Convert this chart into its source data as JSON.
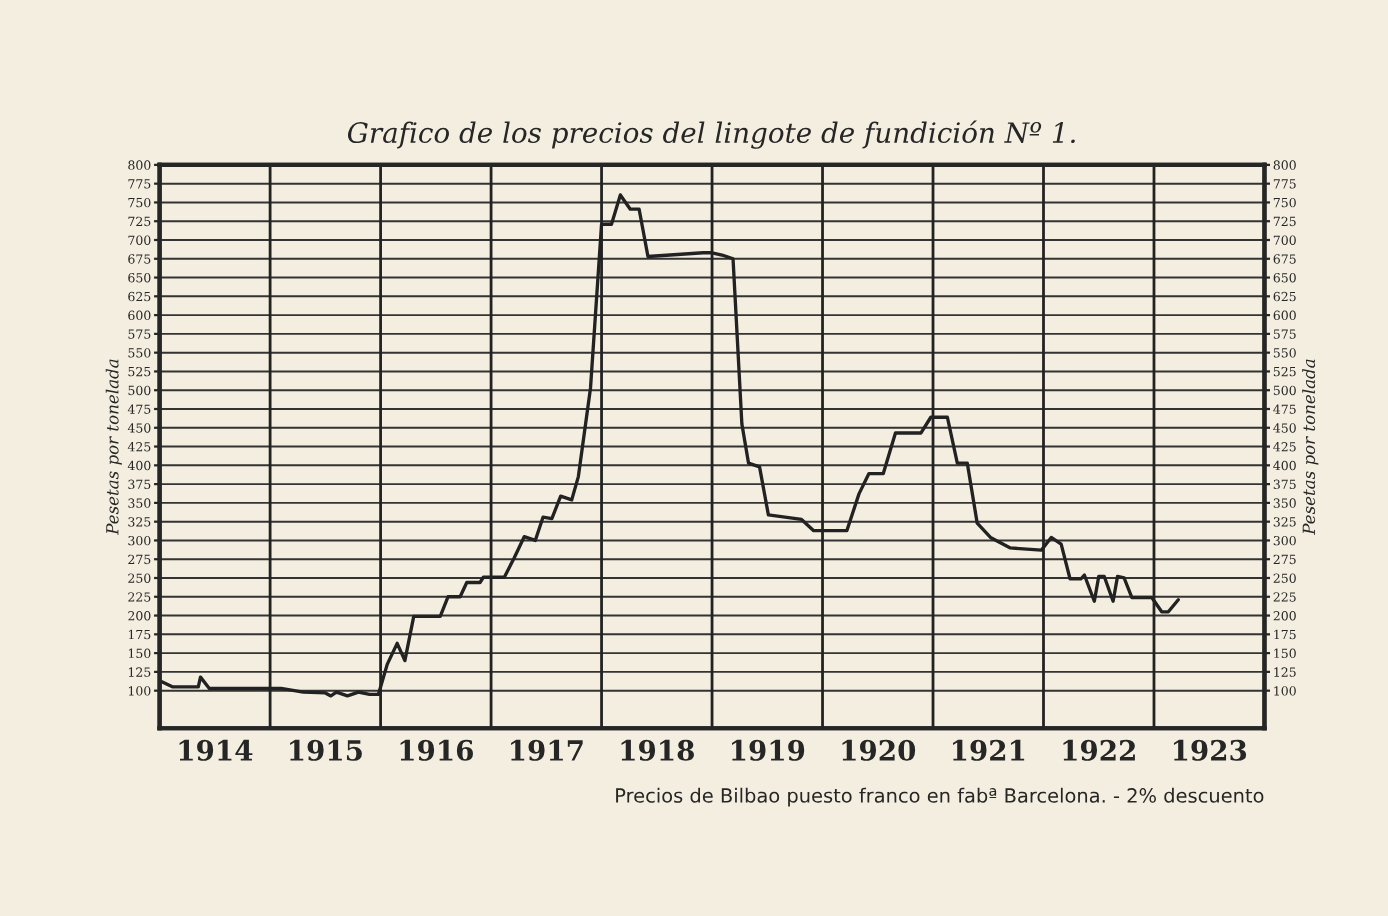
{
  "chart_data": {
    "type": "line",
    "title": "Grafico de los precios del lingote de fundición Nº 1.",
    "ylabel": "Pesetas por tonelada",
    "y2label": "Pesetas por tonelada",
    "annotations": [
      "Precios de Bilbao puesto franco en fabª Barcelona. - 2% descuento"
    ],
    "series": [
      {
        "color": "#222222",
        "x": [
          1914.02,
          1914.12,
          1914.35,
          1914.37,
          1914.45,
          1914.9,
          1915.1,
          1915.3,
          1915.5,
          1915.55,
          1915.6,
          1915.7,
          1915.8,
          1915.9,
          1915.98,
          1916.06,
          1916.15,
          1916.22,
          1916.3,
          1916.54,
          1916.61,
          1916.72,
          1916.78,
          1916.9,
          1916.93,
          1917.12,
          1917.21,
          1917.3,
          1917.4,
          1917.47,
          1917.55,
          1917.63,
          1917.73,
          1917.79,
          1917.9,
          1918.0,
          1918.09,
          1918.17,
          1918.26,
          1918.34,
          1918.42,
          1918.92,
          1919.0,
          1919.09,
          1919.19,
          1919.27,
          1919.33,
          1919.43,
          1919.51,
          1919.81,
          1919.92,
          1920.22,
          1920.33,
          1920.42,
          1920.55,
          1920.66,
          1920.89,
          1920.98,
          1921.13,
          1921.22,
          1921.31,
          1921.4,
          1921.52,
          1921.7,
          1921.98,
          1922.07,
          1922.16,
          1922.24,
          1922.34,
          1922.37,
          1922.46,
          1922.5,
          1922.55,
          1922.63,
          1922.67,
          1922.73,
          1922.8,
          1922.98,
          1923.07,
          1923.13,
          1923.22
        ],
        "values": [
          112,
          105,
          105,
          118,
          103,
          103,
          103,
          98,
          97,
          93,
          98,
          93,
          98,
          95,
          95,
          135,
          163,
          140,
          199,
          199,
          225,
          225,
          244,
          244,
          251,
          251,
          277,
          305,
          300,
          331,
          329,
          359,
          354,
          385,
          503,
          721,
          721,
          760,
          741,
          741,
          678,
          683,
          683,
          680,
          675,
          455,
          403,
          398,
          334,
          328,
          313,
          313,
          362,
          389,
          389,
          443,
          443,
          464,
          464,
          403,
          403,
          323,
          304,
          290,
          287,
          304,
          295,
          249,
          249,
          254,
          219,
          252,
          252,
          219,
          252,
          250,
          224,
          224,
          205,
          205,
          221
        ]
      }
    ],
    "xlim": [
      1914,
      1924
    ],
    "xticks": [
      {
        "value": 1914.5,
        "label": "1914"
      },
      {
        "value": 1915.5,
        "label": "1915"
      },
      {
        "value": 1916.5,
        "label": "1916"
      },
      {
        "value": 1917.5,
        "label": "1917"
      },
      {
        "value": 1918.5,
        "label": "1918"
      },
      {
        "value": 1919.5,
        "label": "1919"
      },
      {
        "value": 1920.5,
        "label": "1920"
      },
      {
        "value": 1921.5,
        "label": "1921"
      },
      {
        "value": 1922.5,
        "label": "1922"
      },
      {
        "value": 1923.5,
        "label": "1923"
      }
    ],
    "ylim": [
      50,
      800
    ],
    "yticks": [
      100,
      125,
      150,
      175,
      200,
      225,
      250,
      275,
      300,
      325,
      350,
      375,
      400,
      425,
      450,
      475,
      500,
      525,
      550,
      575,
      600,
      625,
      650,
      675,
      700,
      725,
      750,
      775,
      800
    ],
    "y2lim": [
      50,
      800
    ],
    "y2ticks": [
      100,
      125,
      150,
      175,
      200,
      225,
      250,
      275,
      300,
      325,
      350,
      375,
      400,
      425,
      450,
      475,
      500,
      525,
      550,
      575,
      600,
      625,
      650,
      675,
      700,
      725,
      750,
      775,
      800
    ],
    "ref_lines": [
      {
        "axis": "x",
        "value": 1915,
        "color": "#222222"
      },
      {
        "axis": "x",
        "value": 1916,
        "color": "#222222"
      },
      {
        "axis": "x",
        "value": 1917,
        "color": "#222222"
      },
      {
        "axis": "x",
        "value": 1918,
        "color": "#222222"
      },
      {
        "axis": "x",
        "value": 1919,
        "color": "#222222"
      },
      {
        "axis": "x",
        "value": 1920,
        "color": "#222222"
      },
      {
        "axis": "x",
        "value": 1921,
        "color": "#222222"
      },
      {
        "axis": "x",
        "value": 1922,
        "color": "#222222"
      },
      {
        "axis": "x",
        "value": 1923,
        "color": "#222222"
      }
    ],
    "grid": "y",
    "legend": false,
    "marker": "none",
    "line_style": "solid"
  }
}
